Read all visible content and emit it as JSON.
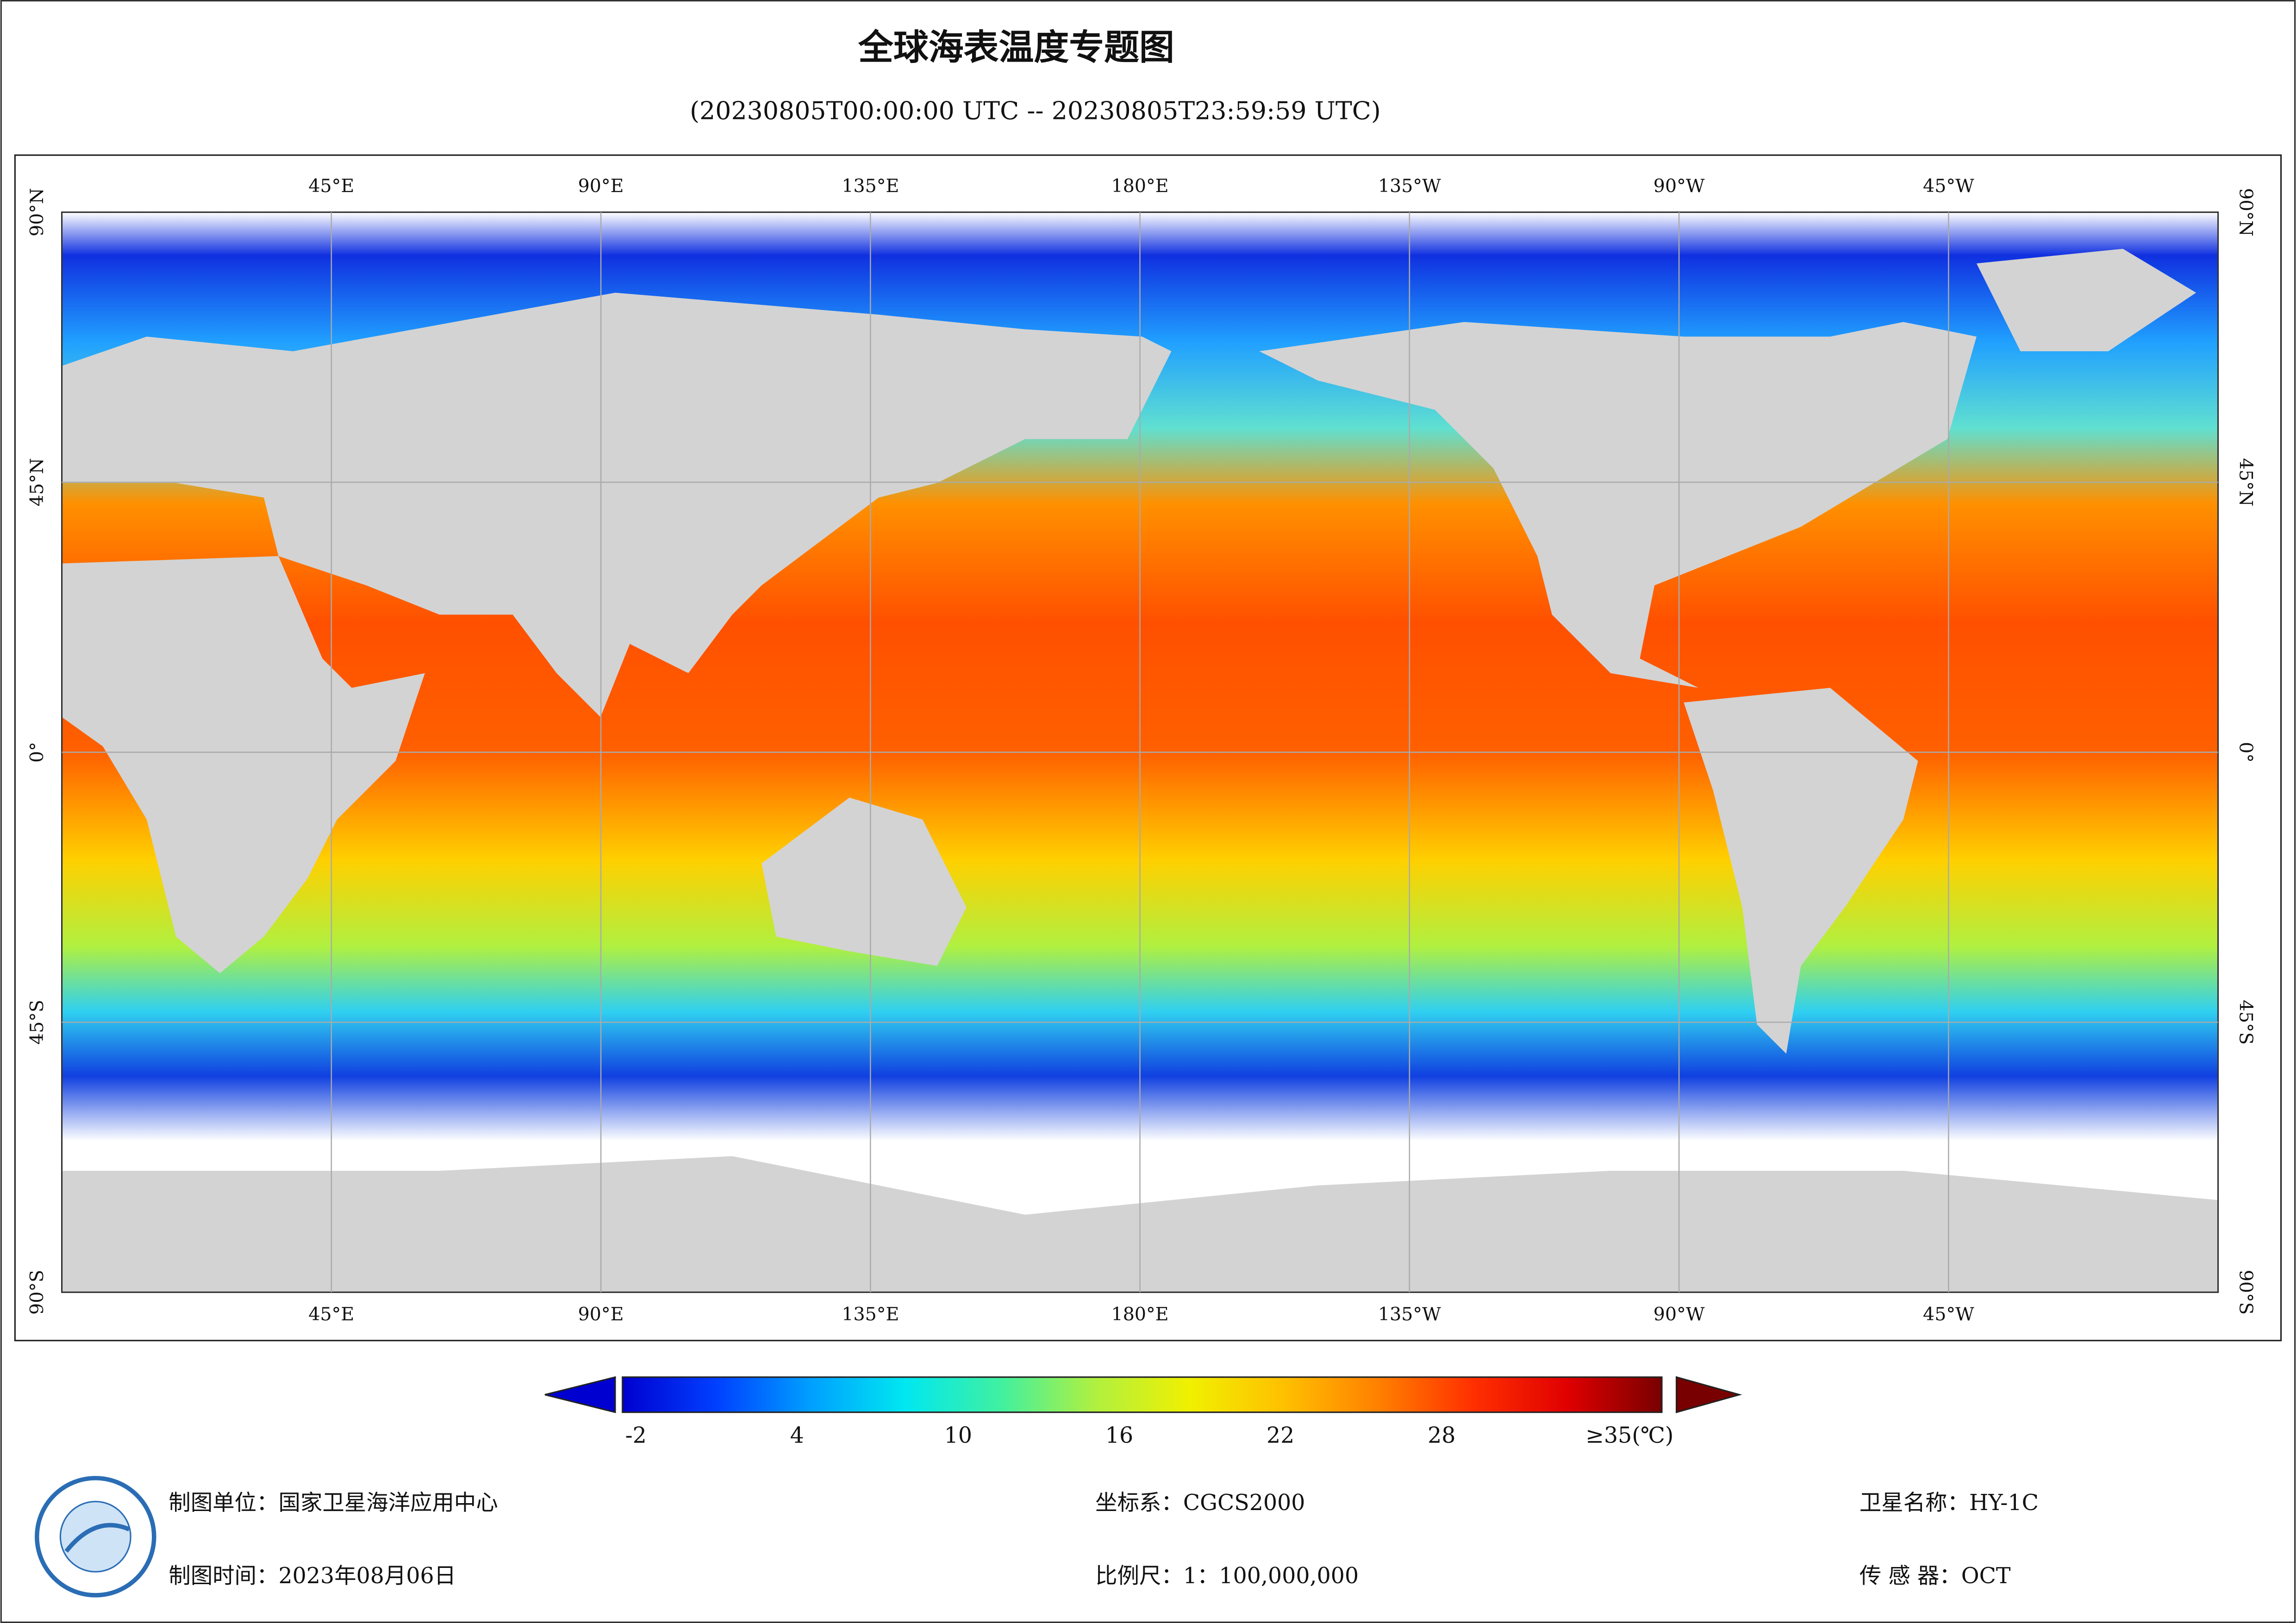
{
  "header": {
    "title": "全球海表温度专题图",
    "subtitle": "(20230805T00:00:00 UTC -- 20230805T23:59:59 UTC)"
  },
  "map": {
    "lon_labels": [
      "45°E",
      "90°E",
      "135°E",
      "180°E",
      "135°W",
      "90°W",
      "45°W"
    ],
    "lat_labels": [
      "90°N",
      "45°N",
      "0°",
      "45°S",
      "90°S"
    ]
  },
  "colorbar": {
    "range": [
      -2.5,
      36.2
    ],
    "colors": [
      "#0000d0",
      "#0040ff",
      "#00a0ff",
      "#00e8f0",
      "#40f0a0",
      "#b0f040",
      "#f0f000",
      "#ffc000",
      "#ff8000",
      "#ff3000",
      "#e00000",
      "#780000"
    ],
    "ticks": [
      -2,
      4,
      10,
      16,
      22,
      28,
      {
        "value": 35,
        "label": "≥35(℃)"
      }
    ]
  },
  "footer": {
    "unit": "制图单位：国家卫星海洋应用中心",
    "time": "制图时间：2023年08月06日",
    "crs": "坐标系：CGCS2000",
    "scale": "比例尺：1：100,000,000",
    "satellite": "卫星名称：HY-1C",
    "sensor": "传 感 器：OCT"
  }
}
